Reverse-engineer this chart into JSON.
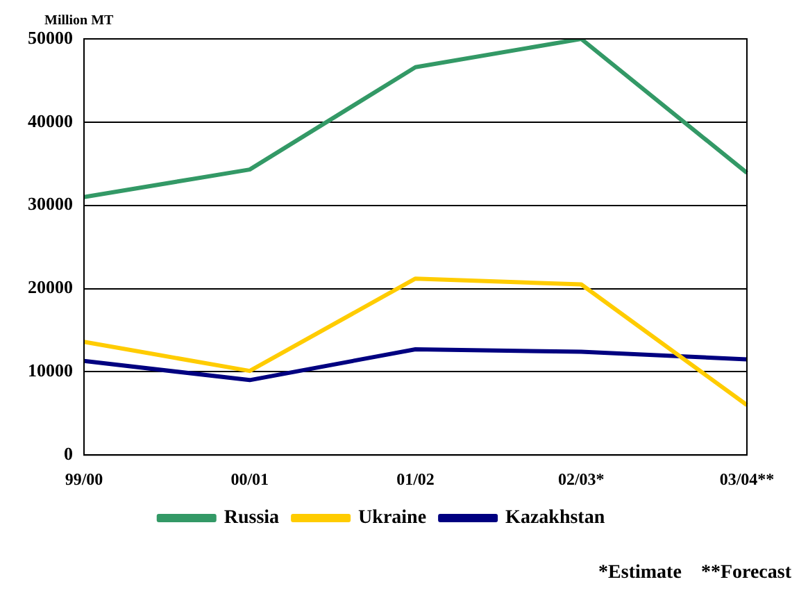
{
  "chart_data": {
    "type": "line",
    "ylabel": "Million MT",
    "categories": [
      "99/00",
      "00/01",
      "01/02",
      "02/03*",
      "03/04**"
    ],
    "series": [
      {
        "name": "Russia",
        "color": "#339966",
        "values": [
          31000,
          34300,
          46600,
          50000,
          33900
        ]
      },
      {
        "name": "Ukraine",
        "color": "#ffcc00",
        "values": [
          13600,
          10100,
          21200,
          20500,
          6000
        ]
      },
      {
        "name": "Kazakhstan",
        "color": "#000080",
        "values": [
          11300,
          9000,
          12700,
          12400,
          11500
        ]
      }
    ],
    "ylim": [
      0,
      50000
    ],
    "yticks": [
      0,
      10000,
      20000,
      30000,
      40000,
      50000
    ],
    "grid": "y",
    "legend": "bottom",
    "marker": "none",
    "line_style": "solid",
    "annotations": [
      "*Estimate",
      "**Forecast"
    ]
  }
}
